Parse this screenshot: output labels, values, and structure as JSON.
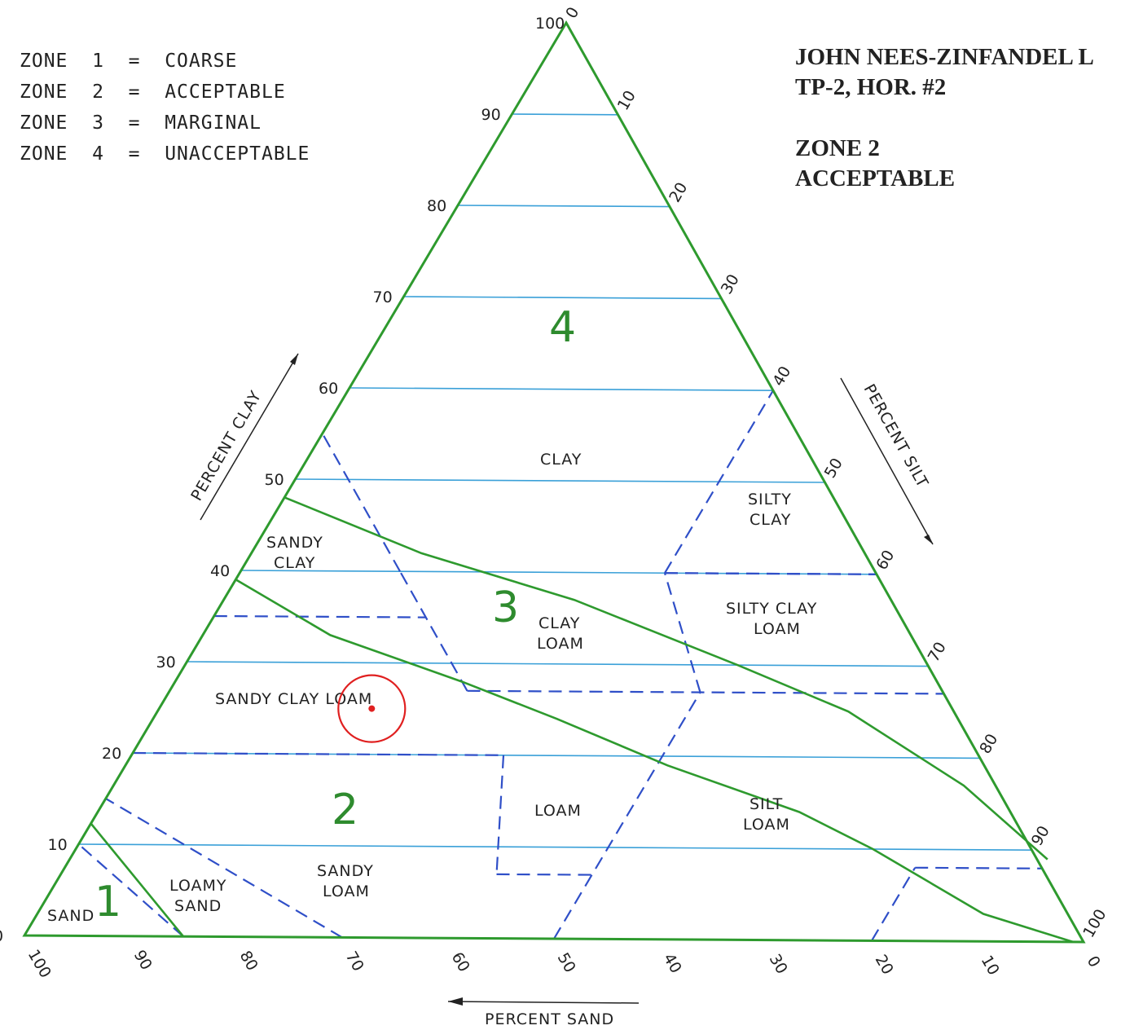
{
  "legend": [
    {
      "zone": "ZONE  1",
      "eq": "=",
      "desc": "COARSE"
    },
    {
      "zone": "ZONE  2",
      "eq": "=",
      "desc": "ACCEPTABLE"
    },
    {
      "zone": "ZONE  3",
      "eq": "=",
      "desc": "MARGINAL"
    },
    {
      "zone": "ZONE  4",
      "eq": "=",
      "desc": "UNACCEPTABLE"
    }
  ],
  "header": {
    "site": "JOHN NEES-ZINFANDEL L",
    "test_pit": "TP-2, HOR. #2",
    "result_zone": "ZONE 2",
    "result_desc": "ACCEPTABLE"
  },
  "axes": {
    "clay_title": "PERCENT CLAY",
    "silt_title": "PERCENT SILT",
    "sand_title": "PERCENT SAND",
    "clay_ticks": [
      "0",
      "10",
      "20",
      "30",
      "40",
      "50",
      "60",
      "70",
      "80",
      "90",
      "100"
    ],
    "silt_ticks": [
      "0",
      "10",
      "20",
      "30",
      "40",
      "50",
      "60",
      "70",
      "80",
      "90",
      "100"
    ],
    "sand_ticks": [
      "100",
      "90",
      "80",
      "70",
      "60",
      "50",
      "40",
      "30",
      "20",
      "10",
      "0"
    ]
  },
  "regions": {
    "sand": "SAND",
    "loamy_sand": [
      "LOAMY",
      "SAND"
    ],
    "sandy_loam": [
      "SANDY",
      "LOAM"
    ],
    "loam": "LOAM",
    "silt_loam": [
      "SILT",
      "LOAM"
    ],
    "sandy_clay_loam": "SANDY  CLAY  LOAM",
    "clay_loam": [
      "CLAY",
      "LOAM"
    ],
    "silty_clay_loam": [
      "SILTY  CLAY",
      "LOAM"
    ],
    "sandy_clay": [
      "SANDY",
      "CLAY"
    ],
    "silty_clay": [
      "SILTY",
      "CLAY"
    ],
    "clay": "CLAY"
  },
  "zone_numbers": [
    "1",
    "2",
    "3",
    "4"
  ],
  "sample": {
    "sand": 55,
    "silt": 20,
    "clay": 25
  },
  "colors": {
    "zone_boundary": "#2e9a2e",
    "texture_boundary": "#2f4fc8",
    "grid": "#3aa0d8",
    "sample_marker": "#e02020"
  }
}
